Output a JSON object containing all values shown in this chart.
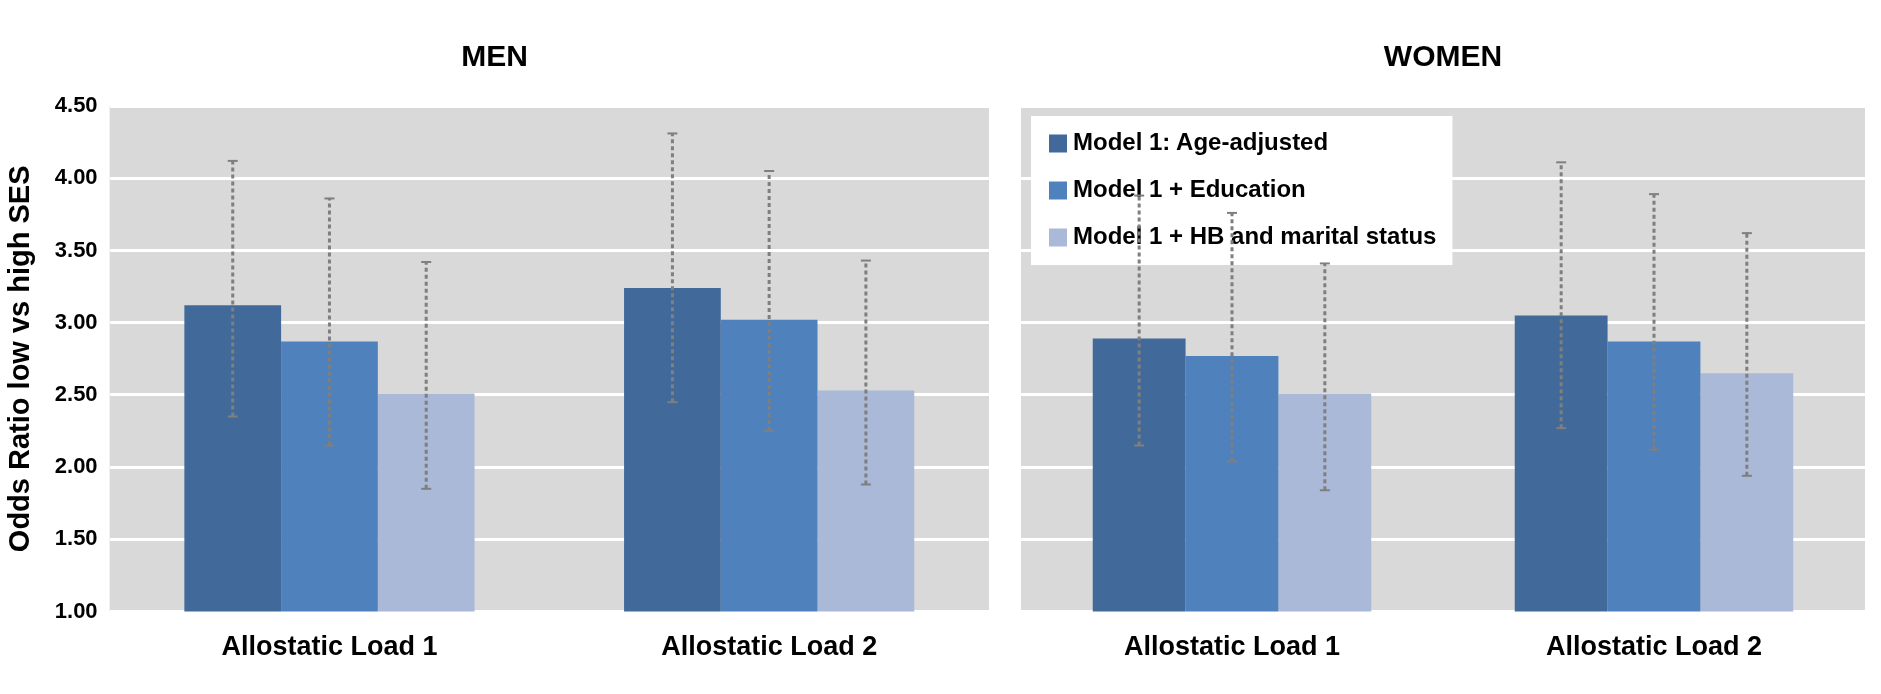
{
  "chart_data": [
    {
      "type": "bar",
      "title": "MEN",
      "ylabel": "Odds Ratio low vs high SES",
      "categories": [
        "Allostatic Load 1",
        "Allostatic Load 2"
      ],
      "series": [
        {
          "color": "#416a9b",
          "values": [
            3.12,
            3.24
          ],
          "errors": [
            [
              2.35,
              4.12
            ],
            [
              2.45,
              4.31
            ]
          ]
        },
        {
          "color": "#4f81bd",
          "values": [
            2.87,
            3.02
          ],
          "errors": [
            [
              2.15,
              3.86
            ],
            [
              2.25,
              4.05
            ]
          ]
        },
        {
          "color": "#aab9d7",
          "values": [
            2.51,
            2.53
          ],
          "errors": [
            [
              1.85,
              3.42
            ],
            [
              1.88,
              3.43
            ]
          ]
        }
      ],
      "ylim": [
        1,
        4.5
      ],
      "yticks": [
        {
          "value": 1,
          "label": "1.00"
        },
        {
          "value": 1.5,
          "label": "1.50"
        },
        {
          "value": 2,
          "label": "2.00"
        },
        {
          "value": 2.5,
          "label": "2.50"
        },
        {
          "value": 3,
          "label": "3.00"
        },
        {
          "value": 3.5,
          "label": "3.50"
        },
        {
          "value": 4,
          "label": "4.00"
        },
        {
          "value": 4.5,
          "label": "4.50"
        }
      ],
      "grid": "y",
      "legend": false
    },
    {
      "type": "bar",
      "title": "WOMEN",
      "categories": [
        "Allostatic Load 1",
        "Allostatic Load 2"
      ],
      "series": [
        {
          "name": "Model 1: Age-adjusted",
          "color": "#416a9b",
          "values": [
            2.89,
            3.05
          ],
          "errors": [
            [
              2.15,
              3.88
            ],
            [
              2.27,
              4.11
            ]
          ]
        },
        {
          "name": "Model 1 + Education",
          "color": "#4f81bd",
          "values": [
            2.77,
            2.87
          ],
          "errors": [
            [
              2.04,
              3.76
            ],
            [
              2.12,
              3.89
            ]
          ]
        },
        {
          "name": "Model 1 + HB and marital status",
          "color": "#aab9d7",
          "values": [
            2.51,
            2.65
          ],
          "errors": [
            [
              1.84,
              3.41
            ],
            [
              1.94,
              3.62
            ]
          ]
        }
      ],
      "ylim": [
        1,
        4.5
      ],
      "grid": "y",
      "legend": "top left",
      "tick_labels": "x",
      "yticks": [
        1,
        1.5,
        2,
        2.5,
        3,
        3.5,
        4,
        4.5
      ]
    }
  ]
}
